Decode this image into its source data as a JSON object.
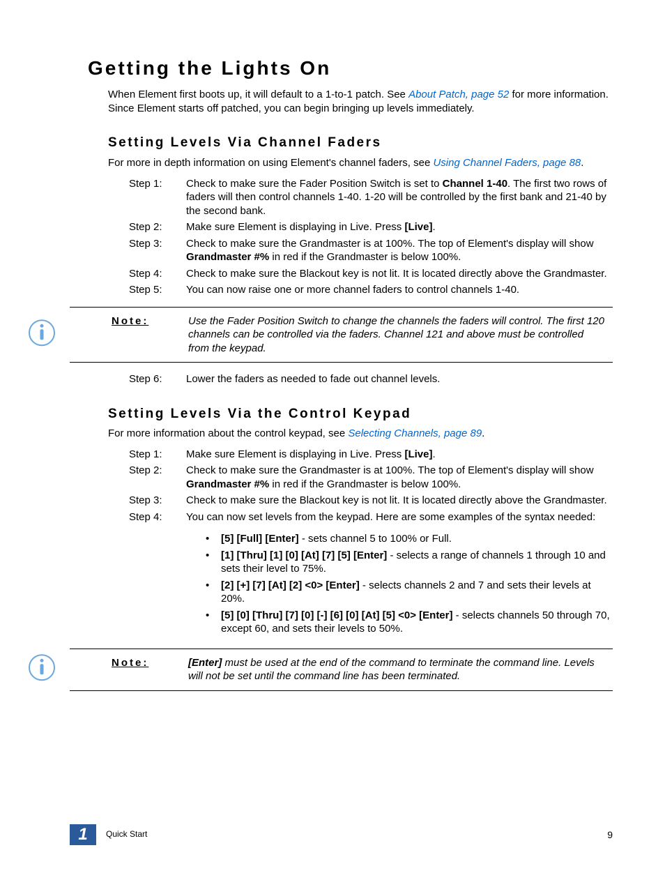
{
  "main_heading": "Getting the Lights On",
  "intro_part1": "When Element first boots up, it will default to a 1-to-1 patch. See ",
  "intro_link": "About Patch, page 52",
  "intro_part2": " for more information. Since Element starts off patched, you can begin bringing up levels immediately.",
  "section1": {
    "heading": "Setting Levels Via Channel Faders",
    "intro_part1": "For more in depth information on using Element's channel faders, see ",
    "intro_link": "Using Channel Faders, page 88",
    "intro_part2": ".",
    "steps": [
      {
        "label": "Step 1:",
        "t1": "Check to make sure the Fader Position Switch is set to ",
        "b1": "Channel 1-40",
        "t2": ". The first two rows of faders will then control channels 1-40. 1-20 will be controlled by the first bank and 21-40 by the second bank."
      },
      {
        "label": "Step 2:",
        "t1": "Make sure Element is displaying in Live. Press ",
        "b1": "[Live]",
        "t2": "."
      },
      {
        "label": "Step 3:",
        "t1": "Check to make sure the Grandmaster is at 100%. The top of Element's display will show ",
        "b1": "Grandmaster #%",
        "t2": " in red if the Grandmaster is below 100%."
      },
      {
        "label": "Step 4:",
        "t1": "Check to make sure the Blackout key is not lit. It is located directly above the Grandmaster.",
        "b1": "",
        "t2": ""
      },
      {
        "label": "Step 5:",
        "t1": "You can now raise one or more channel faders to control channels 1-40.",
        "b1": "",
        "t2": ""
      }
    ],
    "note_label": "Note:",
    "note_text": "Use the Fader Position Switch to change the channels the faders will control. The first 120 channels can be controlled via the faders. Channel 121 and above must be controlled from the keypad.",
    "step6": {
      "label": "Step 6:",
      "text": "Lower the faders as needed to fade out channel levels."
    }
  },
  "section2": {
    "heading": "Setting Levels Via the Control Keypad",
    "intro_part1": "For more information about the control keypad, see ",
    "intro_link": "Selecting Channels, page 89",
    "intro_part2": ".",
    "steps": [
      {
        "label": "Step 1:",
        "t1": "Make sure Element is displaying in Live. Press ",
        "b1": "[Live]",
        "t2": "."
      },
      {
        "label": "Step 2:",
        "t1": "Check to make sure the Grandmaster is at 100%. The top of Element's display will show ",
        "b1": "Grandmaster #%",
        "t2": " in red if the Grandmaster is below 100%."
      },
      {
        "label": "Step 3:",
        "t1": "Check to make sure the Blackout key is not lit. It is located directly above the Grandmaster.",
        "b1": "",
        "t2": ""
      },
      {
        "label": "Step 4:",
        "t1": "You can now set levels from the keypad. Here are some examples of the syntax needed:",
        "b1": "",
        "t2": ""
      }
    ],
    "examples": [
      {
        "b": "[5] [Full] [Enter]",
        "t": " - sets channel 5 to 100% or Full."
      },
      {
        "b": "[1] [Thru] [1] [0] [At] [7] [5] [Enter]",
        "t": " - selects a range of channels 1 through 10 and sets their level to 75%."
      },
      {
        "b": "[2] [+] [7] [At] [2] <0> [Enter]",
        "t": " - selects channels 2 and 7 and sets their levels at 20%."
      },
      {
        "b": "[5] [0] [Thru] [7] [0] [-] [6] [0] [At] [5] <0> [Enter]",
        "t": " - selects channels 50 through 70, except 60, and sets their levels to 50%."
      }
    ],
    "note_label": "Note:",
    "note_b": "[Enter]",
    "note_text": " must be used at the end of the command to terminate the command line. Levels will not be set until the command line has been terminated."
  },
  "footer": {
    "chapter_num": "1",
    "chapter_title": "Quick Start",
    "page_num": "9"
  },
  "colors": {
    "link": "#0066cc",
    "badge_bg": "#2a5a9a",
    "icon_stroke": "#6aa7e0"
  }
}
